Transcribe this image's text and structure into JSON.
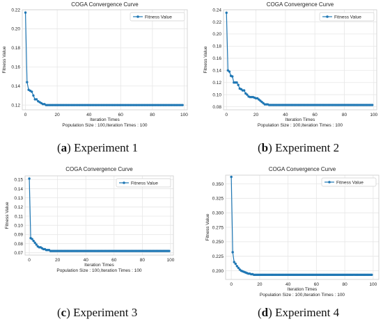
{
  "colors": {
    "line": "#1f77b4",
    "marker": "#1f77b4",
    "grid": "#e6e6e6",
    "axis": "#cccccc",
    "text": "#222222"
  },
  "chart_data": [
    {
      "type": "line",
      "panel_label": "a",
      "caption": "Experiment 1",
      "title": "COGA Convergence Curve",
      "xlabel": "Iteration Times",
      "xlabel2": "Population Size : 100,Iteration Times : 100",
      "ylabel": "Fitness Value",
      "legend": "top-right",
      "grid": true,
      "xlim": [
        -2,
        102
      ],
      "ylim": [
        0.115,
        0.22
      ],
      "xticks": [
        0,
        20,
        40,
        60,
        80,
        100
      ],
      "yticks": [
        0.12,
        0.14,
        0.16,
        0.18,
        0.2,
        0.22
      ],
      "ytick_labels": [
        "0.12",
        "0.14",
        "0.16",
        "0.18",
        "0.20",
        "0.22"
      ],
      "series": [
        {
          "name": "Fitness Value",
          "x": [
            0,
            1,
            2,
            3,
            4,
            5,
            6,
            7,
            8,
            9,
            10,
            11,
            12,
            13,
            14,
            15,
            16,
            17,
            18,
            19,
            20,
            21,
            22,
            23,
            24,
            25,
            26,
            27,
            28,
            29,
            30,
            31,
            32,
            33,
            34,
            35,
            36,
            37,
            38,
            39,
            40,
            41,
            42,
            43,
            44,
            45,
            46,
            47,
            48,
            49,
            50,
            51,
            52,
            53,
            54,
            55,
            56,
            57,
            58,
            59,
            60,
            61,
            62,
            63,
            64,
            65,
            66,
            67,
            68,
            69,
            70,
            71,
            72,
            73,
            74,
            75,
            76,
            77,
            78,
            79,
            80,
            81,
            82,
            83,
            84,
            85,
            86,
            87,
            88,
            89,
            90,
            91,
            92,
            93,
            94,
            95,
            96,
            97,
            98,
            99
          ],
          "values": [
            0.217,
            0.144,
            0.136,
            0.135,
            0.134,
            0.13,
            0.126,
            0.126,
            0.124,
            0.123,
            0.122,
            0.121,
            0.121,
            0.12,
            0.12,
            0.12,
            0.12,
            0.12,
            0.12,
            0.12,
            0.12,
            0.12,
            0.12,
            0.12,
            0.12,
            0.12,
            0.12,
            0.12,
            0.12,
            0.12,
            0.12,
            0.12,
            0.12,
            0.12,
            0.12,
            0.12,
            0.12,
            0.12,
            0.12,
            0.12,
            0.12,
            0.12,
            0.12,
            0.12,
            0.12,
            0.12,
            0.12,
            0.12,
            0.12,
            0.12,
            0.12,
            0.12,
            0.12,
            0.12,
            0.12,
            0.12,
            0.12,
            0.12,
            0.12,
            0.12,
            0.12,
            0.12,
            0.12,
            0.12,
            0.12,
            0.12,
            0.12,
            0.12,
            0.12,
            0.12,
            0.12,
            0.12,
            0.12,
            0.12,
            0.12,
            0.12,
            0.12,
            0.12,
            0.12,
            0.12,
            0.12,
            0.12,
            0.12,
            0.12,
            0.12,
            0.12,
            0.12,
            0.12,
            0.12,
            0.12,
            0.12,
            0.12,
            0.12,
            0.12,
            0.12,
            0.12,
            0.12,
            0.12,
            0.12,
            0.12
          ]
        }
      ]
    },
    {
      "type": "line",
      "panel_label": "b",
      "caption": "Experiment 2",
      "title": "COGA Convergence Curve",
      "xlabel": "Iteration Times",
      "xlabel2": "Population Size : 100,Iteration Times : 100",
      "ylabel": "Fitness Value",
      "legend": "top-right",
      "grid": true,
      "xlim": [
        -2,
        102
      ],
      "ylim": [
        0.075,
        0.24
      ],
      "xticks": [
        0,
        20,
        40,
        60,
        80,
        100
      ],
      "yticks": [
        0.08,
        0.1,
        0.12,
        0.14,
        0.16,
        0.18,
        0.2,
        0.22,
        0.24
      ],
      "ytick_labels": [
        "0.08",
        "0.10",
        "0.12",
        "0.14",
        "0.16",
        "0.18",
        "0.20",
        "0.22",
        "0.24"
      ],
      "series": [
        {
          "name": "Fitness Value",
          "x": [
            0,
            1,
            2,
            3,
            4,
            5,
            6,
            7,
            8,
            9,
            10,
            11,
            12,
            13,
            14,
            15,
            16,
            17,
            18,
            19,
            20,
            21,
            22,
            23,
            24,
            25,
            26,
            27,
            28,
            29,
            30,
            31,
            32,
            33,
            34,
            35,
            36,
            37,
            38,
            39,
            40,
            41,
            42,
            43,
            44,
            45,
            46,
            47,
            48,
            49,
            50,
            51,
            52,
            53,
            54,
            55,
            56,
            57,
            58,
            59,
            60,
            61,
            62,
            63,
            64,
            65,
            66,
            67,
            68,
            69,
            70,
            71,
            72,
            73,
            74,
            75,
            76,
            77,
            78,
            79,
            80,
            81,
            82,
            83,
            84,
            85,
            86,
            87,
            88,
            89,
            90,
            91,
            92,
            93,
            94,
            95,
            96,
            97,
            98,
            99
          ],
          "values": [
            0.235,
            0.14,
            0.138,
            0.131,
            0.13,
            0.12,
            0.12,
            0.12,
            0.116,
            0.11,
            0.109,
            0.107,
            0.107,
            0.102,
            0.1,
            0.097,
            0.096,
            0.096,
            0.096,
            0.095,
            0.094,
            0.094,
            0.092,
            0.09,
            0.088,
            0.086,
            0.084,
            0.084,
            0.084,
            0.083,
            0.083,
            0.083,
            0.083,
            0.083,
            0.083,
            0.083,
            0.083,
            0.083,
            0.083,
            0.083,
            0.083,
            0.083,
            0.083,
            0.083,
            0.083,
            0.083,
            0.083,
            0.083,
            0.083,
            0.083,
            0.083,
            0.083,
            0.083,
            0.083,
            0.083,
            0.083,
            0.083,
            0.083,
            0.083,
            0.083,
            0.083,
            0.083,
            0.083,
            0.083,
            0.083,
            0.083,
            0.083,
            0.083,
            0.083,
            0.083,
            0.083,
            0.083,
            0.083,
            0.083,
            0.083,
            0.083,
            0.083,
            0.083,
            0.083,
            0.083,
            0.083,
            0.083,
            0.083,
            0.083,
            0.083,
            0.083,
            0.083,
            0.083,
            0.083,
            0.083,
            0.083,
            0.083,
            0.083,
            0.083,
            0.083,
            0.083,
            0.083,
            0.083,
            0.083,
            0.083
          ]
        }
      ]
    },
    {
      "type": "line",
      "panel_label": "c",
      "caption": "Experiment 3",
      "title": "COGA Convergence Curve",
      "xlabel": "Iteration Times",
      "xlabel2": "Population Size : 100,Iteration Times : 100",
      "ylabel": "Fitness Value",
      "legend": "top-right",
      "grid": true,
      "xlim": [
        -3,
        102
      ],
      "ylim": [
        0.0675,
        0.154
      ],
      "xticks": [
        0,
        20,
        40,
        60,
        80,
        100
      ],
      "yticks": [
        0.07,
        0.08,
        0.09,
        0.1,
        0.11,
        0.12,
        0.13,
        0.14,
        0.15
      ],
      "ytick_labels": [
        "0.07",
        "0.08",
        "0.09",
        "0.10",
        "0.11",
        "0.12",
        "0.13",
        "0.14",
        "0.15"
      ],
      "series": [
        {
          "name": "Fitness Value",
          "x": [
            0,
            1,
            2,
            3,
            4,
            5,
            6,
            7,
            8,
            9,
            10,
            11,
            12,
            13,
            14,
            15,
            16,
            17,
            18,
            19,
            20,
            21,
            22,
            23,
            24,
            25,
            26,
            27,
            28,
            29,
            30,
            31,
            32,
            33,
            34,
            35,
            36,
            37,
            38,
            39,
            40,
            41,
            42,
            43,
            44,
            45,
            46,
            47,
            48,
            49,
            50,
            51,
            52,
            53,
            54,
            55,
            56,
            57,
            58,
            59,
            60,
            61,
            62,
            63,
            64,
            65,
            66,
            67,
            68,
            69,
            70,
            71,
            72,
            73,
            74,
            75,
            76,
            77,
            78,
            79,
            80,
            81,
            82,
            83,
            84,
            85,
            86,
            87,
            88,
            89,
            90,
            91,
            92,
            93,
            94,
            95,
            96,
            97,
            98,
            99
          ],
          "values": [
            0.151,
            0.086,
            0.085,
            0.083,
            0.081,
            0.079,
            0.077,
            0.076,
            0.076,
            0.075,
            0.074,
            0.074,
            0.073,
            0.073,
            0.073,
            0.072,
            0.072,
            0.072,
            0.072,
            0.072,
            0.072,
            0.072,
            0.072,
            0.072,
            0.072,
            0.072,
            0.072,
            0.072,
            0.072,
            0.072,
            0.072,
            0.072,
            0.072,
            0.072,
            0.072,
            0.072,
            0.072,
            0.072,
            0.072,
            0.072,
            0.072,
            0.072,
            0.072,
            0.072,
            0.072,
            0.072,
            0.072,
            0.072,
            0.072,
            0.072,
            0.072,
            0.072,
            0.072,
            0.072,
            0.072,
            0.072,
            0.072,
            0.072,
            0.072,
            0.072,
            0.072,
            0.072,
            0.072,
            0.072,
            0.072,
            0.072,
            0.072,
            0.072,
            0.072,
            0.072,
            0.072,
            0.072,
            0.072,
            0.072,
            0.072,
            0.072,
            0.072,
            0.072,
            0.072,
            0.072,
            0.072,
            0.072,
            0.072,
            0.072,
            0.072,
            0.072,
            0.072,
            0.072,
            0.072,
            0.072,
            0.072,
            0.072,
            0.072,
            0.072,
            0.072,
            0.072,
            0.072,
            0.072,
            0.072,
            0.072
          ]
        }
      ]
    },
    {
      "type": "line",
      "panel_label": "d",
      "caption": "Experiment 4",
      "title": "COGA Convergence Curve",
      "xlabel": "Iteration Times",
      "xlabel2": "Population Size : 100,Iteration Times : 100",
      "ylabel": "Fitness Value",
      "legend": "top-right",
      "grid": true,
      "xlim": [
        -4,
        104
      ],
      "ylim": [
        0.185,
        0.365
      ],
      "xticks": [
        0,
        20,
        40,
        60,
        80,
        100
      ],
      "yticks": [
        0.2,
        0.225,
        0.25,
        0.275,
        0.3,
        0.325,
        0.35
      ],
      "ytick_labels": [
        "0.200",
        "0.225",
        "0.250",
        "0.275",
        "0.300",
        "0.325",
        "0.350"
      ],
      "series": [
        {
          "name": "Fitness Value",
          "x": [
            0,
            1,
            2,
            3,
            4,
            5,
            6,
            7,
            8,
            9,
            10,
            11,
            12,
            13,
            14,
            15,
            16,
            17,
            18,
            19,
            20,
            21,
            22,
            23,
            24,
            25,
            26,
            27,
            28,
            29,
            30,
            31,
            32,
            33,
            34,
            35,
            36,
            37,
            38,
            39,
            40,
            41,
            42,
            43,
            44,
            45,
            46,
            47,
            48,
            49,
            50,
            51,
            52,
            53,
            54,
            55,
            56,
            57,
            58,
            59,
            60,
            61,
            62,
            63,
            64,
            65,
            66,
            67,
            68,
            69,
            70,
            71,
            72,
            73,
            74,
            75,
            76,
            77,
            78,
            79,
            80,
            81,
            82,
            83,
            84,
            85,
            86,
            87,
            88,
            89,
            90,
            91,
            92,
            93,
            94,
            95,
            96,
            97,
            98,
            99
          ],
          "values": [
            0.362,
            0.232,
            0.215,
            0.212,
            0.208,
            0.205,
            0.202,
            0.2,
            0.199,
            0.198,
            0.197,
            0.196,
            0.195,
            0.195,
            0.194,
            0.194,
            0.193,
            0.193,
            0.193,
            0.193,
            0.193,
            0.193,
            0.193,
            0.193,
            0.193,
            0.193,
            0.193,
            0.193,
            0.193,
            0.193,
            0.193,
            0.193,
            0.193,
            0.193,
            0.193,
            0.193,
            0.193,
            0.193,
            0.193,
            0.193,
            0.193,
            0.193,
            0.193,
            0.193,
            0.193,
            0.193,
            0.193,
            0.193,
            0.193,
            0.193,
            0.193,
            0.193,
            0.193,
            0.193,
            0.193,
            0.193,
            0.193,
            0.193,
            0.193,
            0.193,
            0.193,
            0.193,
            0.193,
            0.193,
            0.193,
            0.193,
            0.193,
            0.193,
            0.193,
            0.193,
            0.193,
            0.193,
            0.193,
            0.193,
            0.193,
            0.193,
            0.193,
            0.193,
            0.193,
            0.193,
            0.193,
            0.193,
            0.193,
            0.193,
            0.193,
            0.193,
            0.193,
            0.193,
            0.193,
            0.193,
            0.193,
            0.193,
            0.193,
            0.193,
            0.193,
            0.193,
            0.193,
            0.193,
            0.193,
            0.193
          ]
        }
      ]
    }
  ]
}
